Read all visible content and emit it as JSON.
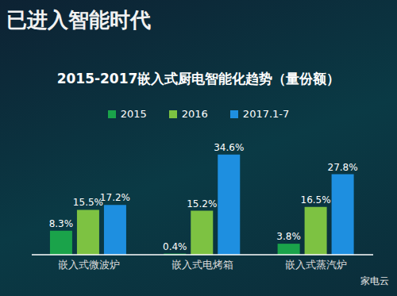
{
  "chart_data": {
    "type": "bar",
    "heading": "已进入智能时代",
    "title": "2015-2017嵌入式厨电智能化趋势（量份额）",
    "watermark": "家电云",
    "categories": [
      "嵌入式微波炉",
      "嵌入式电烤箱",
      "嵌入式蒸汽炉"
    ],
    "series": [
      {
        "name": "2015",
        "color": "#1aa34a",
        "values": [
          8.3,
          0.4,
          3.8
        ],
        "value_labels": [
          "8.3%",
          "0.4%",
          "3.8%"
        ]
      },
      {
        "name": "2016",
        "color": "#7dc242",
        "values": [
          15.5,
          15.2,
          16.5
        ],
        "value_labels": [
          "15.5%",
          "15.2%",
          "16.5%"
        ]
      },
      {
        "name": "2017.1-7",
        "color": "#1e8fe0",
        "values": [
          17.2,
          34.6,
          27.8
        ],
        "value_labels": [
          "17.2%",
          "34.6%",
          "27.8%"
        ]
      }
    ],
    "ylim": [
      0,
      40
    ],
    "data_labels": true,
    "tick_labels": "x",
    "legend": "top",
    "grid": false
  }
}
